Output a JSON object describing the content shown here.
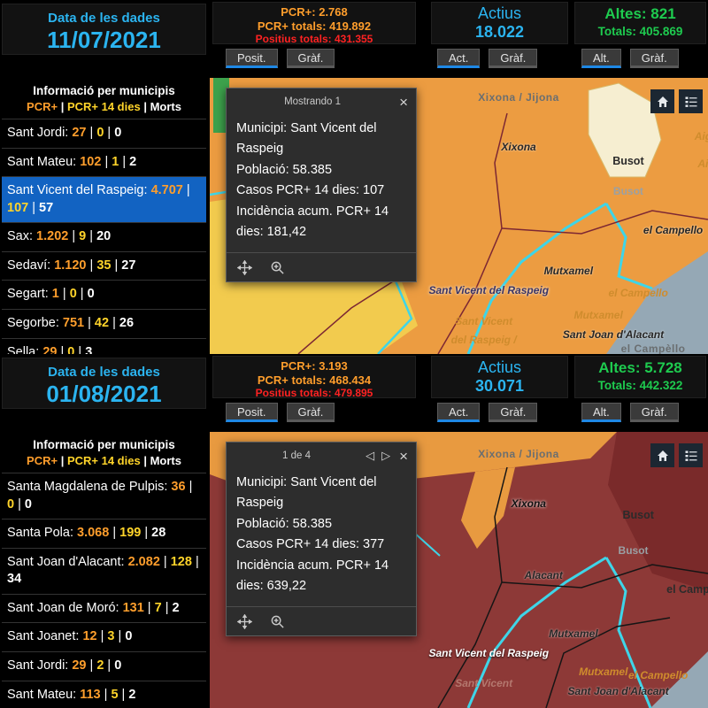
{
  "colors": {
    "cyan": "#2bb4f0",
    "orange": "#ff9e2c",
    "yellow": "#ffd42a",
    "red": "#ff2222",
    "green": "#1ecb4f",
    "selection_blue": "#1263c2",
    "active_tab_underline": "#1e88e5",
    "map_orange": "#ec9c41",
    "map_yellow": "#f2cb4e",
    "map_cream": "#f6eed1",
    "map_dark_red": "#8d3937",
    "map_darker_red": "#7a2a2a",
    "map_sea_gray": "#95a8b5",
    "map_boundary_cyan": "#3ed5e8"
  },
  "panels": [
    {
      "header": {
        "date_label": "Data de les dades",
        "date_value": "11/07/2021",
        "pcr_line1": "PCR+: 2.768",
        "pcr_line2": "PCR+ totals: 419.892",
        "pcr_line3": "Positius totals: 431.355",
        "pcr_btn1": "Posit.",
        "pcr_btn2": "Gràf.",
        "actius_label": "Actius",
        "actius_value": "18.022",
        "actius_btn1": "Act.",
        "actius_btn2": "Gràf.",
        "altes_line1": "Altes: 821",
        "altes_line2": "Totals: 405.869",
        "altes_btn1": "Alt.",
        "altes_btn2": "Gràf."
      },
      "sidebar": {
        "title": "Informació per municipis",
        "legend_pcr": "PCR+",
        "legend_pcr14": "PCR+ 14 dies",
        "legend_morts": "Morts",
        "rows": [
          {
            "name": "Sant Jordi",
            "v1": "27",
            "v2": "0",
            "v3": "0",
            "selected": false
          },
          {
            "name": "Sant Mateu",
            "v1": "102",
            "v2": "1",
            "v3": "2",
            "selected": false
          },
          {
            "name": "Sant Vicent del Raspeig",
            "v1": "4.707",
            "v2": "107",
            "v3": "57",
            "selected": true
          },
          {
            "name": "Sax",
            "v1": "1.202",
            "v2": "9",
            "v3": "20",
            "selected": false
          },
          {
            "name": "Sedaví",
            "v1": "1.120",
            "v2": "35",
            "v3": "27",
            "selected": false
          },
          {
            "name": "Segart",
            "v1": "1",
            "v2": "0",
            "v3": "0",
            "selected": false
          },
          {
            "name": "Segorbe",
            "v1": "751",
            "v2": "42",
            "v3": "26",
            "selected": false
          },
          {
            "name": "Sella",
            "v1": "29",
            "v2": "0",
            "v3": "3",
            "selected": false
          }
        ]
      },
      "popup": {
        "title": "Mostrando 1",
        "close": "×",
        "line1": "Municipi: Sant Vicent del Raspeig",
        "line2": "Població: 58.385",
        "line3": "Casos PCR+ 14 dies: 107",
        "line4": "Incidència acum. PCR+ 14 dies: 181,42"
      },
      "map": {
        "labels": [
          {
            "text": "Xixona / Jijona",
            "x": "62%",
            "y": "7%",
            "cls": "lbl-region"
          },
          {
            "text": "Xixona",
            "x": "62%",
            "y": "25%",
            "cls": "lbl-muni"
          },
          {
            "text": "Busot",
            "x": "84%",
            "y": "30%",
            "cls": "lbl-place"
          },
          {
            "text": "Busot",
            "x": "84%",
            "y": "41%",
            "cls": "lbl-place-gray"
          },
          {
            "text": "el Campello",
            "x": "93%",
            "y": "55%",
            "cls": "lbl-muni"
          },
          {
            "text": "Mutxamel",
            "x": "72%",
            "y": "70%",
            "cls": "lbl-muni"
          },
          {
            "text": "Sant Vicent del Raspeig",
            "x": "56%",
            "y": "77%",
            "cls": "lbl-halo"
          },
          {
            "text": "el Campello",
            "x": "86%",
            "y": "78%",
            "cls": "lbl-orange"
          },
          {
            "text": "Sant Vicent",
            "x": "55%",
            "y": "88%",
            "cls": "lbl-orange"
          },
          {
            "text": "del Raspeig /",
            "x": "55%",
            "y": "95%",
            "cls": "lbl-orange"
          },
          {
            "text": "Mutxamel",
            "x": "78%",
            "y": "86%",
            "cls": "lbl-orange"
          },
          {
            "text": "Sant Joan d'Alacant",
            "x": "81%",
            "y": "93%",
            "cls": "lbl-muni"
          },
          {
            "text": "el Campèllo",
            "x": "89%",
            "y": "98%",
            "cls": "lbl-region"
          },
          {
            "text": "Aig",
            "x": "99%",
            "y": "21%",
            "cls": "lbl-orange"
          },
          {
            "text": "Ai",
            "x": "99%",
            "y": "31%",
            "cls": "lbl-orange"
          }
        ]
      }
    },
    {
      "header": {
        "date_label": "Data de les dades",
        "date_value": "01/08/2021",
        "pcr_line1": "PCR+: 3.193",
        "pcr_line2": "PCR+ totals: 468.434",
        "pcr_line3": "Positius totals: 479.895",
        "pcr_btn1": "Posit.",
        "pcr_btn2": "Gràf.",
        "actius_label": "Actius",
        "actius_value": "30.071",
        "actius_btn1": "Act.",
        "actius_btn2": "Gràf.",
        "altes_line1": "Altes: 5.728",
        "altes_line2": "Totals: 442.322",
        "altes_btn1": "Alt.",
        "altes_btn2": "Gràf."
      },
      "sidebar": {
        "title": "Informació per municipis",
        "legend_pcr": "PCR+",
        "legend_pcr14": "PCR+ 14 dies",
        "legend_morts": "Morts",
        "rows": [
          {
            "name": "Santa Magdalena de Pulpis",
            "v1": "36",
            "v2": "0",
            "v3": "0",
            "selected": false
          },
          {
            "name": "Santa Pola",
            "v1": "3.068",
            "v2": "199",
            "v3": "28",
            "selected": false
          },
          {
            "name": "Sant Joan d'Alacant",
            "v1": "2.082",
            "v2": "128",
            "v3": "34",
            "selected": false
          },
          {
            "name": "Sant Joan de Moró",
            "v1": "131",
            "v2": "7",
            "v3": "2",
            "selected": false
          },
          {
            "name": "Sant Joanet",
            "v1": "12",
            "v2": "3",
            "v3": "0",
            "selected": false
          },
          {
            "name": "Sant Jordi",
            "v1": "29",
            "v2": "2",
            "v3": "0",
            "selected": false
          },
          {
            "name": "Sant Mateu",
            "v1": "113",
            "v2": "5",
            "v3": "2",
            "selected": false
          }
        ]
      },
      "popup": {
        "title": "1 de 4",
        "prev": "◁",
        "next": "▷",
        "close": "×",
        "line1": "Municipi: Sant Vicent del Raspeig",
        "line2": "Població: 58.385",
        "line3": "Casos PCR+ 14 dies: 377",
        "line4": "Incidència acum. PCR+ 14 dies: 639,22"
      },
      "map": {
        "labels": [
          {
            "text": "Xixona / Jijona",
            "x": "62%",
            "y": "8%",
            "cls": "lbl-region"
          },
          {
            "text": "Xixona",
            "x": "64%",
            "y": "26%",
            "cls": "lbl-halo-dark"
          },
          {
            "text": "Busot",
            "x": "86%",
            "y": "30%",
            "cls": "lbl-place"
          },
          {
            "text": "Busot",
            "x": "85%",
            "y": "43%",
            "cls": "lbl-place-gray"
          },
          {
            "text": "Alacant",
            "x": "67%",
            "y": "52%",
            "cls": "lbl-muni"
          },
          {
            "text": "el Camp",
            "x": "96%",
            "y": "57%",
            "cls": "lbl-place"
          },
          {
            "text": "Mutxamel",
            "x": "73%",
            "y": "73%",
            "cls": "lbl-muni"
          },
          {
            "text": "Sant Vicent del Raspeig",
            "x": "56%",
            "y": "80%",
            "cls": "lbl-white"
          },
          {
            "text": "el Campello",
            "x": "90%",
            "y": "88%",
            "cls": "lbl-orange"
          },
          {
            "text": "Mutxamel",
            "x": "79%",
            "y": "87%",
            "cls": "lbl-orange"
          },
          {
            "text": "Sant Joan d'Alacant",
            "x": "82%",
            "y": "94%",
            "cls": "lbl-muni"
          },
          {
            "text": "Sant Vicent",
            "x": "55%",
            "y": "91%",
            "cls": "lbl-darkred"
          }
        ]
      }
    }
  ]
}
